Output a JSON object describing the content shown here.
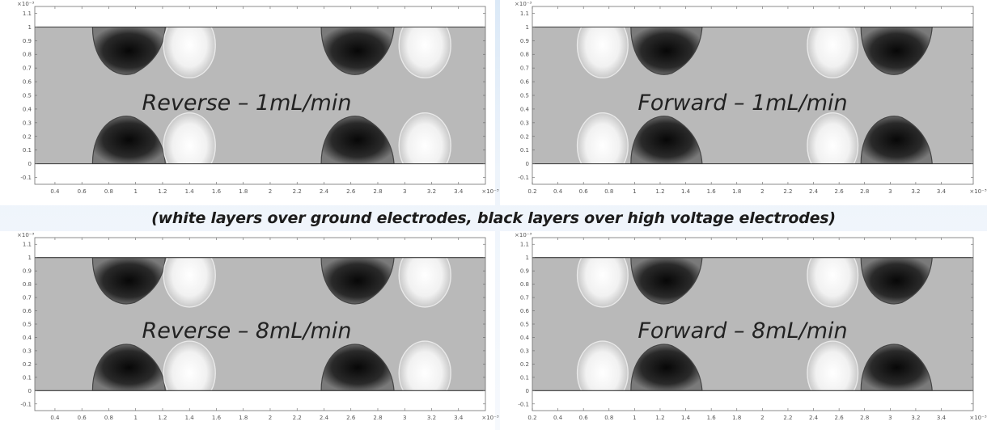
{
  "caption": "(white layers over ground electrodes, black layers over high voltage electrodes)",
  "chart_data": [
    {
      "type": "heatmap",
      "title": "Reverse – 1mL/min",
      "x_exponent_label": "×10⁻³",
      "y_exponent_label": "×10⁻³",
      "xlim": [
        0.25,
        3.6
      ],
      "ylim": [
        -0.15,
        1.15
      ],
      "x_ticks": [
        "0.4",
        "0.6",
        "0.8",
        "1",
        "1.2",
        "1.4",
        "1.6",
        "1.8",
        "2",
        "2.2",
        "2.4",
        "2.6",
        "2.8",
        "3",
        "3.2",
        "3.4"
      ],
      "y_ticks": [
        "1.1",
        "1",
        "0.9",
        "0.8",
        "0.7",
        "0.6",
        "0.5",
        "0.4",
        "0.3",
        "0.2",
        "0.1",
        "0",
        "-0.1"
      ],
      "channel": [
        0,
        1
      ],
      "dark_blobs": [
        {
          "x": 0.95,
          "wall": "top"
        },
        {
          "x": 2.65,
          "wall": "top"
        },
        {
          "x": 0.95,
          "wall": "bottom"
        },
        {
          "x": 2.65,
          "wall": "bottom"
        }
      ],
      "light_blobs": [
        {
          "x": 1.4,
          "wall": "top"
        },
        {
          "x": 3.15,
          "wall": "top"
        },
        {
          "x": 1.4,
          "wall": "bottom"
        },
        {
          "x": 3.15,
          "wall": "bottom"
        }
      ]
    },
    {
      "type": "heatmap",
      "title": "Forward – 1mL/min",
      "x_exponent_label": "×10⁻³",
      "y_exponent_label": "×10⁻³",
      "xlim": [
        0.2,
        3.65
      ],
      "ylim": [
        -0.15,
        1.15
      ],
      "x_ticks": [
        "0.2",
        "0.4",
        "0.6",
        "0.8",
        "1",
        "1.2",
        "1.4",
        "1.6",
        "1.8",
        "2",
        "2.2",
        "2.4",
        "2.6",
        "2.8",
        "3",
        "3.2",
        "3.4"
      ],
      "y_ticks": [
        "1.1",
        "1",
        "0.9",
        "0.8",
        "0.7",
        "0.6",
        "0.5",
        "0.4",
        "0.3",
        "0.2",
        "0.1",
        "0",
        "-0.1"
      ],
      "channel": [
        0,
        1
      ],
      "dark_blobs": [
        {
          "x": 1.25,
          "wall": "top"
        },
        {
          "x": 3.05,
          "wall": "top"
        },
        {
          "x": 1.25,
          "wall": "bottom"
        },
        {
          "x": 3.05,
          "wall": "bottom"
        }
      ],
      "light_blobs": [
        {
          "x": 0.75,
          "wall": "top"
        },
        {
          "x": 2.55,
          "wall": "top"
        },
        {
          "x": 0.75,
          "wall": "bottom"
        },
        {
          "x": 2.55,
          "wall": "bottom"
        }
      ]
    },
    {
      "type": "heatmap",
      "title": "Reverse – 8mL/min",
      "x_exponent_label": "×10⁻³",
      "y_exponent_label": "×10⁻³",
      "xlim": [
        0.25,
        3.6
      ],
      "ylim": [
        -0.15,
        1.15
      ],
      "x_ticks": [
        "0.4",
        "0.6",
        "0.8",
        "1",
        "1.2",
        "1.4",
        "1.6",
        "1.8",
        "2",
        "2.2",
        "2.4",
        "2.6",
        "2.8",
        "3",
        "3.2",
        "3.4"
      ],
      "y_ticks": [
        "1.1",
        "1",
        "0.9",
        "0.8",
        "0.7",
        "0.6",
        "0.5",
        "0.4",
        "0.3",
        "0.2",
        "0.1",
        "0",
        "-0.1"
      ],
      "channel": [
        0,
        1
      ],
      "dark_blobs": [
        {
          "x": 0.95,
          "wall": "top"
        },
        {
          "x": 2.65,
          "wall": "top"
        },
        {
          "x": 0.95,
          "wall": "bottom"
        },
        {
          "x": 2.65,
          "wall": "bottom"
        }
      ],
      "light_blobs": [
        {
          "x": 1.4,
          "wall": "top"
        },
        {
          "x": 3.15,
          "wall": "top"
        },
        {
          "x": 1.4,
          "wall": "bottom"
        },
        {
          "x": 3.15,
          "wall": "bottom"
        }
      ]
    },
    {
      "type": "heatmap",
      "title": "Forward – 8mL/min",
      "x_exponent_label": "×10⁻³",
      "y_exponent_label": "×10⁻³",
      "xlim": [
        0.2,
        3.65
      ],
      "ylim": [
        -0.15,
        1.15
      ],
      "x_ticks": [
        "0.2",
        "0.4",
        "0.6",
        "0.8",
        "1",
        "1.2",
        "1.4",
        "1.6",
        "1.8",
        "2",
        "2.2",
        "2.4",
        "2.6",
        "2.8",
        "3",
        "3.2",
        "3.4"
      ],
      "y_ticks": [
        "1.1",
        "1",
        "0.9",
        "0.8",
        "0.7",
        "0.6",
        "0.5",
        "0.4",
        "0.3",
        "0.2",
        "0.1",
        "0",
        "-0.1"
      ],
      "channel": [
        0,
        1
      ],
      "dark_blobs": [
        {
          "x": 1.25,
          "wall": "top"
        },
        {
          "x": 3.05,
          "wall": "top"
        },
        {
          "x": 1.25,
          "wall": "bottom"
        },
        {
          "x": 3.05,
          "wall": "bottom"
        }
      ],
      "light_blobs": [
        {
          "x": 0.75,
          "wall": "top"
        },
        {
          "x": 2.55,
          "wall": "top"
        },
        {
          "x": 0.75,
          "wall": "bottom"
        },
        {
          "x": 2.55,
          "wall": "bottom"
        }
      ]
    }
  ]
}
